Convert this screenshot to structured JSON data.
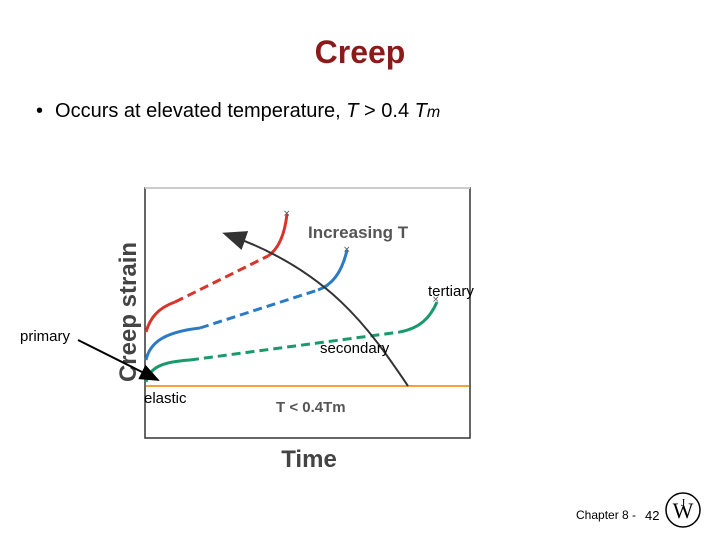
{
  "slide": {
    "title": "Creep",
    "bullet": {
      "symbol": "•",
      "text": "Occurs at elevated temperature, ",
      "var": "T",
      "relation": " > 0.4 ",
      "var2": "T",
      "subscript": "m"
    }
  },
  "figure": {
    "axis_y_label": "Creep strain",
    "axis_x_label": "Time",
    "increasing_label": "Increasing T",
    "low_temp_label": "T < 0.4Tm",
    "colors": {
      "red": "#d9342b",
      "blue": "#2b7bc4",
      "green": "#1a9a6b",
      "orange": "#f4a040",
      "arrow": "#333333",
      "title": "#8b1a1a"
    }
  },
  "annotations": {
    "primary": "primary",
    "secondary": "secondary",
    "tertiary": "tertiary",
    "elastic": "elastic"
  },
  "footer": {
    "chapter": "Chapter 8 -",
    "page": "42",
    "logo_icon": "wiley-logo-icon"
  }
}
